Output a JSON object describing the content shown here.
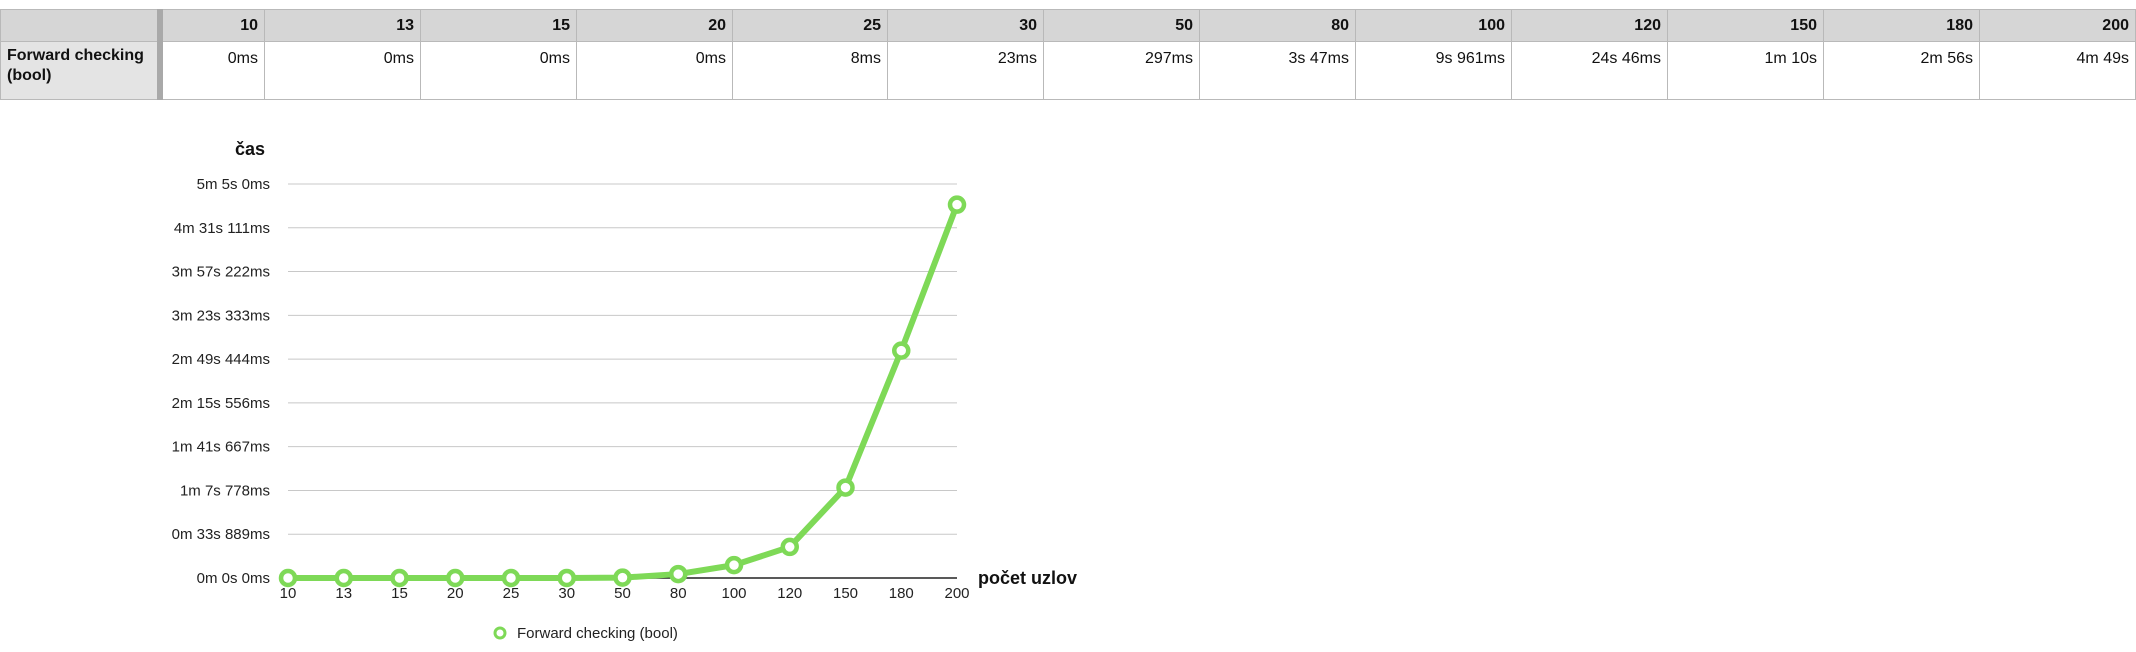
{
  "table": {
    "columns": [
      "10",
      "13",
      "15",
      "20",
      "25",
      "30",
      "50",
      "80",
      "100",
      "120",
      "150",
      "180",
      "200"
    ],
    "row_label": "Forward checking (bool)",
    "values": [
      "0ms",
      "0ms",
      "0ms",
      "0ms",
      "8ms",
      "23ms",
      "297ms",
      "3s 47ms",
      "9s 961ms",
      "24s 46ms",
      "1m 10s",
      "2m 56s",
      "4m 49s"
    ]
  },
  "chart_data": {
    "type": "line",
    "ylabel": "čas",
    "xlabel": "počet uzlov",
    "categories": [
      "10",
      "13",
      "15",
      "20",
      "25",
      "30",
      "50",
      "80",
      "100",
      "120",
      "150",
      "180",
      "200"
    ],
    "y_unit": "ms",
    "ylim": [
      0,
      305000
    ],
    "y_ticks": [
      0,
      33889,
      67778,
      101667,
      135556,
      169444,
      203333,
      237222,
      271111,
      305000
    ],
    "y_tick_labels": [
      "0m 0s 0ms",
      "0m 33s 889ms",
      "1m 7s 778ms",
      "1m 41s 667ms",
      "2m 15s 556ms",
      "2m 49s 444ms",
      "3m 23s 333ms",
      "3m 57s 222ms",
      "4m 31s 111ms",
      "5m 5s 0ms"
    ],
    "series": [
      {
        "name": "Forward checking (bool)",
        "values": [
          0,
          0,
          0,
          0,
          8,
          23,
          297,
          3047,
          9961,
          24046,
          70000,
          176000,
          289000
        ]
      }
    ],
    "grid": true,
    "legend": "bottom-center",
    "colors": {
      "series": "#7ed957",
      "grid": "#c8c8c8",
      "axis": "#222222"
    }
  }
}
